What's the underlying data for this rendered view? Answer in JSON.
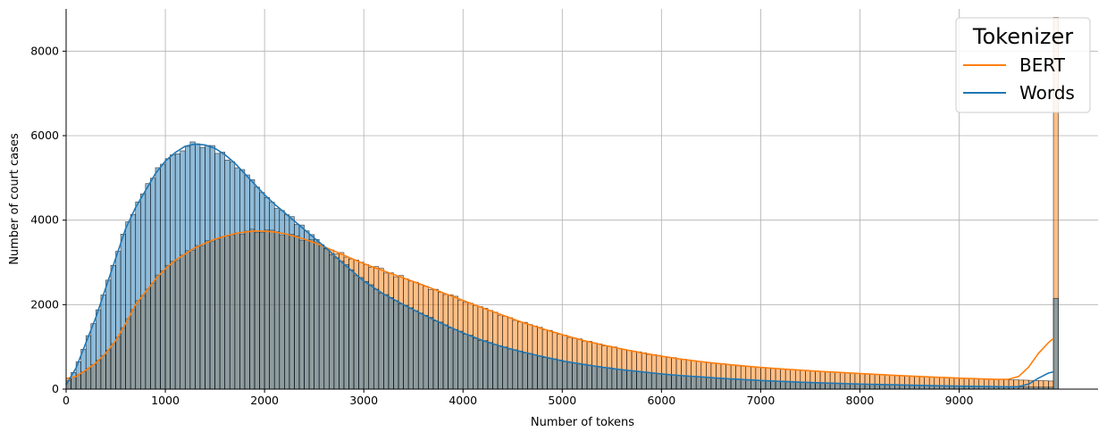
{
  "chart_data": {
    "type": "histogram",
    "xlabel": "Number of tokens",
    "ylabel": "Number of court cases",
    "xlim": [
      0,
      10400
    ],
    "ylim": [
      0,
      9000
    ],
    "x_ticks": [
      0,
      1000,
      2000,
      3000,
      4000,
      5000,
      6000,
      7000,
      8000,
      9000
    ],
    "y_ticks": [
      0,
      2000,
      4000,
      6000,
      8000
    ],
    "grid": true,
    "bin_width": 50,
    "legend": {
      "title": "Tokenizer",
      "position": "top-right",
      "entries": [
        "BERT",
        "Words"
      ]
    },
    "series": [
      {
        "name": "BERT",
        "color": "#ff7f0e",
        "anchors": [
          [
            0,
            250
          ],
          [
            100,
            300
          ],
          [
            200,
            450
          ],
          [
            300,
            620
          ],
          [
            400,
            850
          ],
          [
            500,
            1150
          ],
          [
            600,
            1550
          ],
          [
            700,
            2000
          ],
          [
            800,
            2300
          ],
          [
            900,
            2600
          ],
          [
            1000,
            2850
          ],
          [
            1100,
            3050
          ],
          [
            1200,
            3200
          ],
          [
            1300,
            3350
          ],
          [
            1400,
            3450
          ],
          [
            1500,
            3550
          ],
          [
            1600,
            3620
          ],
          [
            1700,
            3680
          ],
          [
            1800,
            3720
          ],
          [
            1900,
            3740
          ],
          [
            2000,
            3740
          ],
          [
            2100,
            3720
          ],
          [
            2200,
            3680
          ],
          [
            2300,
            3620
          ],
          [
            2400,
            3550
          ],
          [
            2500,
            3470
          ],
          [
            2600,
            3370
          ],
          [
            2700,
            3270
          ],
          [
            2800,
            3170
          ],
          [
            2900,
            3070
          ],
          [
            3000,
            2970
          ],
          [
            3200,
            2800
          ],
          [
            3400,
            2630
          ],
          [
            3600,
            2460
          ],
          [
            3800,
            2280
          ],
          [
            4000,
            2100
          ],
          [
            4200,
            1920
          ],
          [
            4400,
            1750
          ],
          [
            4600,
            1580
          ],
          [
            4800,
            1430
          ],
          [
            5000,
            1290
          ],
          [
            5200,
            1160
          ],
          [
            5400,
            1050
          ],
          [
            5600,
            950
          ],
          [
            5800,
            860
          ],
          [
            6000,
            780
          ],
          [
            6200,
            710
          ],
          [
            6400,
            650
          ],
          [
            6600,
            600
          ],
          [
            6800,
            555
          ],
          [
            7000,
            515
          ],
          [
            7200,
            480
          ],
          [
            7400,
            450
          ],
          [
            7600,
            420
          ],
          [
            7800,
            395
          ],
          [
            8000,
            370
          ],
          [
            8200,
            345
          ],
          [
            8400,
            320
          ],
          [
            8600,
            300
          ],
          [
            8800,
            280
          ],
          [
            9000,
            260
          ],
          [
            9200,
            245
          ],
          [
            9400,
            230
          ],
          [
            9600,
            215
          ],
          [
            9800,
            200
          ],
          [
            9950,
            190
          ]
        ],
        "overflow_bin": {
          "x": 9975,
          "value": 8800
        },
        "kde_tail": [
          [
            9400,
            230
          ],
          [
            9500,
            235
          ],
          [
            9600,
            300
          ],
          [
            9700,
            520
          ],
          [
            9800,
            850
          ],
          [
            9900,
            1100
          ],
          [
            9950,
            1200
          ]
        ]
      },
      {
        "name": "Words",
        "color": "#1f77b4",
        "anchors": [
          [
            0,
            100
          ],
          [
            100,
            500
          ],
          [
            200,
            1100
          ],
          [
            300,
            1700
          ],
          [
            400,
            2400
          ],
          [
            500,
            3100
          ],
          [
            600,
            3800
          ],
          [
            700,
            4300
          ],
          [
            800,
            4700
          ],
          [
            900,
            5100
          ],
          [
            1000,
            5400
          ],
          [
            1100,
            5600
          ],
          [
            1200,
            5750
          ],
          [
            1300,
            5800
          ],
          [
            1400,
            5780
          ],
          [
            1500,
            5700
          ],
          [
            1600,
            5550
          ],
          [
            1700,
            5350
          ],
          [
            1800,
            5100
          ],
          [
            1900,
            4850
          ],
          [
            2000,
            4600
          ],
          [
            2100,
            4380
          ],
          [
            2200,
            4180
          ],
          [
            2300,
            3980
          ],
          [
            2400,
            3780
          ],
          [
            2500,
            3580
          ],
          [
            2600,
            3380
          ],
          [
            2700,
            3170
          ],
          [
            2800,
            2960
          ],
          [
            2900,
            2760
          ],
          [
            3000,
            2560
          ],
          [
            3200,
            2250
          ],
          [
            3400,
            2000
          ],
          [
            3600,
            1760
          ],
          [
            3800,
            1540
          ],
          [
            4000,
            1330
          ],
          [
            4200,
            1150
          ],
          [
            4400,
            1000
          ],
          [
            4600,
            880
          ],
          [
            4800,
            770
          ],
          [
            5000,
            670
          ],
          [
            5200,
            590
          ],
          [
            5400,
            520
          ],
          [
            5600,
            460
          ],
          [
            5800,
            410
          ],
          [
            6000,
            360
          ],
          [
            6200,
            320
          ],
          [
            6400,
            290
          ],
          [
            6600,
            255
          ],
          [
            6800,
            230
          ],
          [
            7000,
            205
          ],
          [
            7200,
            185
          ],
          [
            7400,
            165
          ],
          [
            7600,
            150
          ],
          [
            7800,
            135
          ],
          [
            8000,
            120
          ],
          [
            8200,
            110
          ],
          [
            8400,
            100
          ],
          [
            8600,
            90
          ],
          [
            8800,
            80
          ],
          [
            9000,
            72
          ],
          [
            9200,
            65
          ],
          [
            9400,
            58
          ],
          [
            9600,
            52
          ],
          [
            9800,
            48
          ],
          [
            9950,
            45
          ]
        ],
        "overflow_bin": {
          "x": 9975,
          "value": 2150
        },
        "kde_tail": [
          [
            9400,
            58
          ],
          [
            9500,
            55
          ],
          [
            9600,
            60
          ],
          [
            9700,
            120
          ],
          [
            9800,
            260
          ],
          [
            9900,
            380
          ],
          [
            9950,
            410
          ]
        ]
      }
    ]
  }
}
